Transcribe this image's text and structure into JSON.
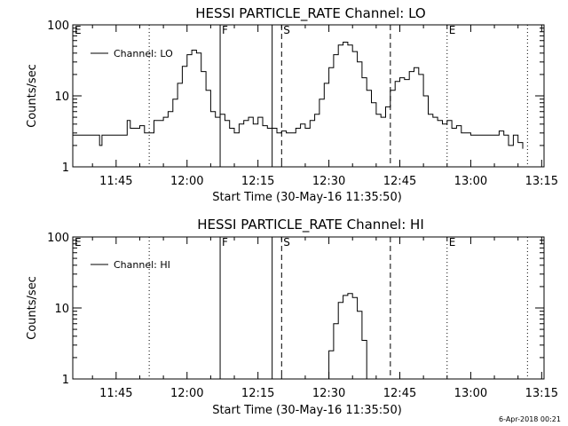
{
  "chart_data": [
    {
      "type": "line",
      "title": "HESSI PARTICLE_RATE Channel: LO",
      "xlabel": "Start Time (30-May-16 11:35:50)",
      "ylabel": "Counts/sec",
      "yscale": "log",
      "ylim": [
        1,
        100
      ],
      "xlim": [
        "11:35:50",
        "13:15:30"
      ],
      "x_ticks": [
        "11:45",
        "12:00",
        "12:15",
        "12:30",
        "12:45",
        "13:00",
        "13:15"
      ],
      "y_ticks": [
        "1",
        "10",
        "100"
      ],
      "grid": false,
      "legend_position": "top-left",
      "series": [
        {
          "name": "Channel: LO",
          "color": "#000000",
          "points": [
            [
              "11:35:50",
              2.8
            ],
            [
              "11:38",
              2.8
            ],
            [
              "11:40",
              2.8
            ],
            [
              "11:41",
              2.8
            ],
            [
              "11:41:30",
              2.0
            ],
            [
              "11:42",
              2.8
            ],
            [
              "11:44",
              2.8
            ],
            [
              "11:46",
              2.8
            ],
            [
              "11:47",
              2.8
            ],
            [
              "11:47:20",
              4.5
            ],
            [
              "11:48",
              3.5
            ],
            [
              "11:49",
              3.5
            ],
            [
              "11:50",
              3.8
            ],
            [
              "11:51",
              3.0
            ],
            [
              "11:52",
              3.0
            ],
            [
              "11:53",
              4.5
            ],
            [
              "11:54",
              4.5
            ],
            [
              "11:55",
              5.0
            ],
            [
              "11:56",
              6.0
            ],
            [
              "11:57",
              9.0
            ],
            [
              "11:58",
              15.0
            ],
            [
              "11:59",
              26.0
            ],
            [
              "12:00",
              38.0
            ],
            [
              "12:01",
              44.0
            ],
            [
              "12:02",
              40.0
            ],
            [
              "12:03",
              22.0
            ],
            [
              "12:04",
              12.0
            ],
            [
              "12:05",
              6.0
            ],
            [
              "12:06",
              5.0
            ],
            [
              "12:07",
              5.5
            ],
            [
              "12:08",
              4.5
            ],
            [
              "12:09",
              3.5
            ],
            [
              "12:10",
              3.0
            ],
            [
              "12:11",
              4.0
            ],
            [
              "12:12",
              4.5
            ],
            [
              "12:13",
              5.0
            ],
            [
              "12:14",
              4.0
            ],
            [
              "12:15",
              5.0
            ],
            [
              "12:16",
              3.8
            ],
            [
              "12:17",
              3.5
            ],
            [
              "12:18",
              3.5
            ],
            [
              "12:19",
              3.0
            ],
            [
              "12:20",
              3.2
            ],
            [
              "12:21",
              3.0
            ],
            [
              "12:22",
              3.0
            ],
            [
              "12:23",
              3.5
            ],
            [
              "12:24",
              4.0
            ],
            [
              "12:25",
              3.5
            ],
            [
              "12:26",
              4.5
            ],
            [
              "12:27",
              5.5
            ],
            [
              "12:28",
              9.0
            ],
            [
              "12:29",
              15.0
            ],
            [
              "12:30",
              25.0
            ],
            [
              "12:31",
              38.0
            ],
            [
              "12:32",
              52.0
            ],
            [
              "12:33",
              57.0
            ],
            [
              "12:34",
              52.0
            ],
            [
              "12:35",
              42.0
            ],
            [
              "12:36",
              30.0
            ],
            [
              "12:37",
              18.0
            ],
            [
              "12:38",
              12.0
            ],
            [
              "12:39",
              8.0
            ],
            [
              "12:40",
              5.5
            ],
            [
              "12:41",
              5.0
            ],
            [
              "12:42",
              7.0
            ],
            [
              "12:43",
              12.0
            ],
            [
              "12:44",
              16.0
            ],
            [
              "12:45",
              18.0
            ],
            [
              "12:46",
              17.0
            ],
            [
              "12:47",
              22.0
            ],
            [
              "12:48",
              25.0
            ],
            [
              "12:49",
              20.0
            ],
            [
              "12:50",
              10.0
            ],
            [
              "12:51",
              5.5
            ],
            [
              "12:52",
              5.0
            ],
            [
              "12:53",
              4.5
            ],
            [
              "12:54",
              4.0
            ],
            [
              "12:55",
              4.5
            ],
            [
              "12:56",
              3.5
            ],
            [
              "12:57",
              3.8
            ],
            [
              "12:58",
              3.0
            ],
            [
              "13:00",
              2.8
            ],
            [
              "13:03",
              2.8
            ],
            [
              "13:05",
              2.8
            ],
            [
              "13:06",
              3.2
            ],
            [
              "13:07",
              2.8
            ],
            [
              "13:08",
              2.0
            ],
            [
              "13:09",
              2.8
            ],
            [
              "13:10",
              2.2
            ],
            [
              "13:11",
              1.8
            ]
          ]
        }
      ],
      "vertical_markers": [
        {
          "label": "E",
          "time": "11:35:50",
          "style": "none"
        },
        {
          "label": "",
          "time": "11:52",
          "style": "dotted"
        },
        {
          "label": "F",
          "time": "12:07",
          "style": "solid"
        },
        {
          "label": "",
          "time": "12:18",
          "style": "solid"
        },
        {
          "label": "S",
          "time": "12:20",
          "style": "dashed"
        },
        {
          "label": "",
          "time": "12:43",
          "style": "dashed"
        },
        {
          "label": "E",
          "time": "12:55",
          "style": "dotted"
        },
        {
          "label": "",
          "time": "13:12",
          "style": "dotted"
        }
      ]
    },
    {
      "type": "line",
      "title": "HESSI PARTICLE_RATE Channel: HI",
      "xlabel": "Start Time (30-May-16 11:35:50)",
      "ylabel": "Counts/sec",
      "yscale": "log",
      "ylim": [
        1,
        100
      ],
      "xlim": [
        "11:35:50",
        "13:15:30"
      ],
      "x_ticks": [
        "11:45",
        "12:00",
        "12:15",
        "12:30",
        "12:45",
        "13:00",
        "13:15"
      ],
      "y_ticks": [
        "1",
        "10",
        "100"
      ],
      "grid": false,
      "legend_position": "top-left",
      "series": [
        {
          "name": "Channel: HI",
          "color": "#000000",
          "points": [
            [
              "12:29",
              1.0
            ],
            [
              "12:30",
              2.5
            ],
            [
              "12:31",
              6.0
            ],
            [
              "12:32",
              12.0
            ],
            [
              "12:33",
              15.0
            ],
            [
              "12:34",
              16.0
            ],
            [
              "12:35",
              14.0
            ],
            [
              "12:36",
              9.0
            ],
            [
              "12:37",
              3.5
            ],
            [
              "12:38",
              1.0
            ]
          ]
        }
      ],
      "vertical_markers": [
        {
          "label": "E",
          "time": "11:35:50",
          "style": "none"
        },
        {
          "label": "",
          "time": "11:52",
          "style": "dotted"
        },
        {
          "label": "F",
          "time": "12:07",
          "style": "solid"
        },
        {
          "label": "",
          "time": "12:18",
          "style": "solid"
        },
        {
          "label": "S",
          "time": "12:20",
          "style": "dashed"
        },
        {
          "label": "",
          "time": "12:43",
          "style": "dashed"
        },
        {
          "label": "E",
          "time": "12:55",
          "style": "dotted"
        },
        {
          "label": "",
          "time": "13:12",
          "style": "dotted"
        }
      ]
    }
  ],
  "footer": {
    "timestamp": "6-Apr-2018 00:21"
  }
}
